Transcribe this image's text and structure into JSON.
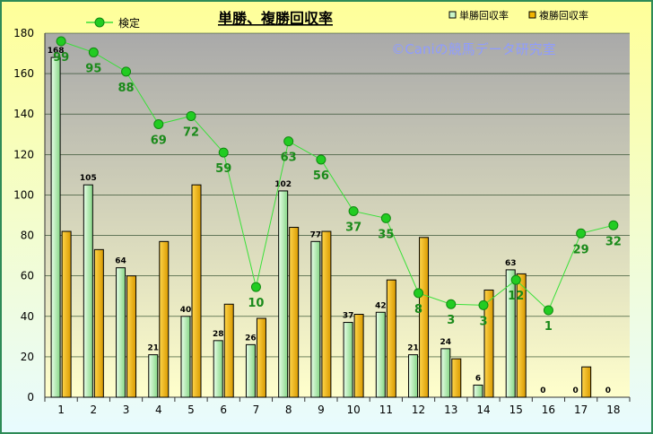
{
  "chart_data": {
    "type": "bar",
    "title": "単勝、複勝回収率",
    "watermark": "©Caniの競馬データ研究室",
    "categories": [
      "1",
      "2",
      "3",
      "4",
      "5",
      "6",
      "7",
      "8",
      "9",
      "10",
      "11",
      "12",
      "13",
      "14",
      "15",
      "16",
      "17",
      "18"
    ],
    "ylim": [
      0,
      180
    ],
    "yticks": [
      0,
      20,
      40,
      60,
      80,
      100,
      120,
      140,
      160,
      180
    ],
    "legend_placement": "top",
    "grid": true,
    "series": [
      {
        "name": "単勝回収率",
        "type": "bar",
        "color": "#b8f0b8",
        "values": [
          168,
          105,
          64,
          21,
          40,
          28,
          26,
          102,
          77,
          37,
          42,
          21,
          24,
          6,
          63,
          0,
          0,
          0
        ],
        "labels": [
          "168",
          "105",
          "64",
          "21",
          "40",
          "28",
          "26",
          "102",
          "77",
          "37",
          "42",
          "21",
          "24",
          "6",
          "63",
          "0",
          "0",
          "0"
        ]
      },
      {
        "name": "複勝回収率",
        "type": "bar",
        "color": "#f2b400",
        "values": [
          82,
          73,
          60,
          77,
          105,
          46,
          39,
          84,
          82,
          41,
          58,
          79,
          19,
          53,
          61,
          0,
          15,
          0
        ]
      },
      {
        "name": "検定",
        "type": "line",
        "color": "#00b000",
        "values": [
          176,
          170.5,
          161,
          135,
          139,
          121,
          54.5,
          126.5,
          117.5,
          92,
          88.5,
          51.5,
          46,
          45.5,
          58,
          43,
          81,
          85
        ],
        "labels": [
          "99",
          "95",
          "88",
          "69",
          "72",
          "59",
          "10",
          "63",
          "56",
          "37",
          "35",
          "8",
          "3",
          "3",
          "12",
          "1",
          "29",
          "32"
        ]
      }
    ]
  }
}
